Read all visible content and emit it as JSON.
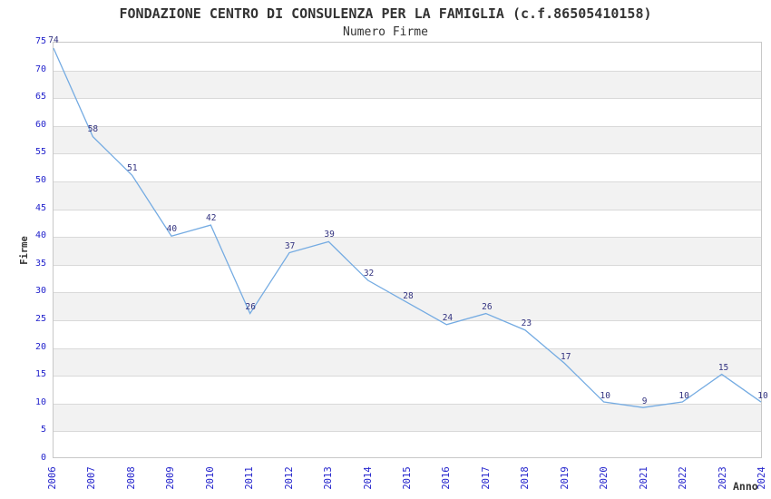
{
  "chart_data": {
    "type": "line",
    "title": "FONDAZIONE CENTRO DI CONSULENZA PER LA FAMIGLIA (c.f.86505410158)",
    "subtitle": "Numero Firme",
    "xlabel": "Anno",
    "ylabel": "Firme",
    "categories": [
      "2006",
      "2007",
      "2008",
      "2009",
      "2010",
      "2011",
      "2012",
      "2013",
      "2014",
      "2015",
      "2016",
      "2017",
      "2018",
      "2019",
      "2020",
      "2021",
      "2022",
      "2023",
      "2024"
    ],
    "values": [
      74,
      58,
      51,
      40,
      42,
      26,
      37,
      39,
      32,
      28,
      24,
      26,
      23,
      17,
      10,
      9,
      10,
      15,
      10
    ],
    "ylim": [
      0,
      75
    ],
    "ytick_step": 5,
    "grid": "horizontal",
    "bands": "alternating-gray-every-5",
    "legend_position": "none",
    "show_point_labels": true,
    "colors": {
      "line": "#74abe2",
      "tick_label": "#2222cc",
      "data_label": "#333380",
      "band": "#f2f2f2",
      "gridline": "#d9d9d9",
      "border": "#c8c8c8",
      "text": "#333333"
    }
  }
}
